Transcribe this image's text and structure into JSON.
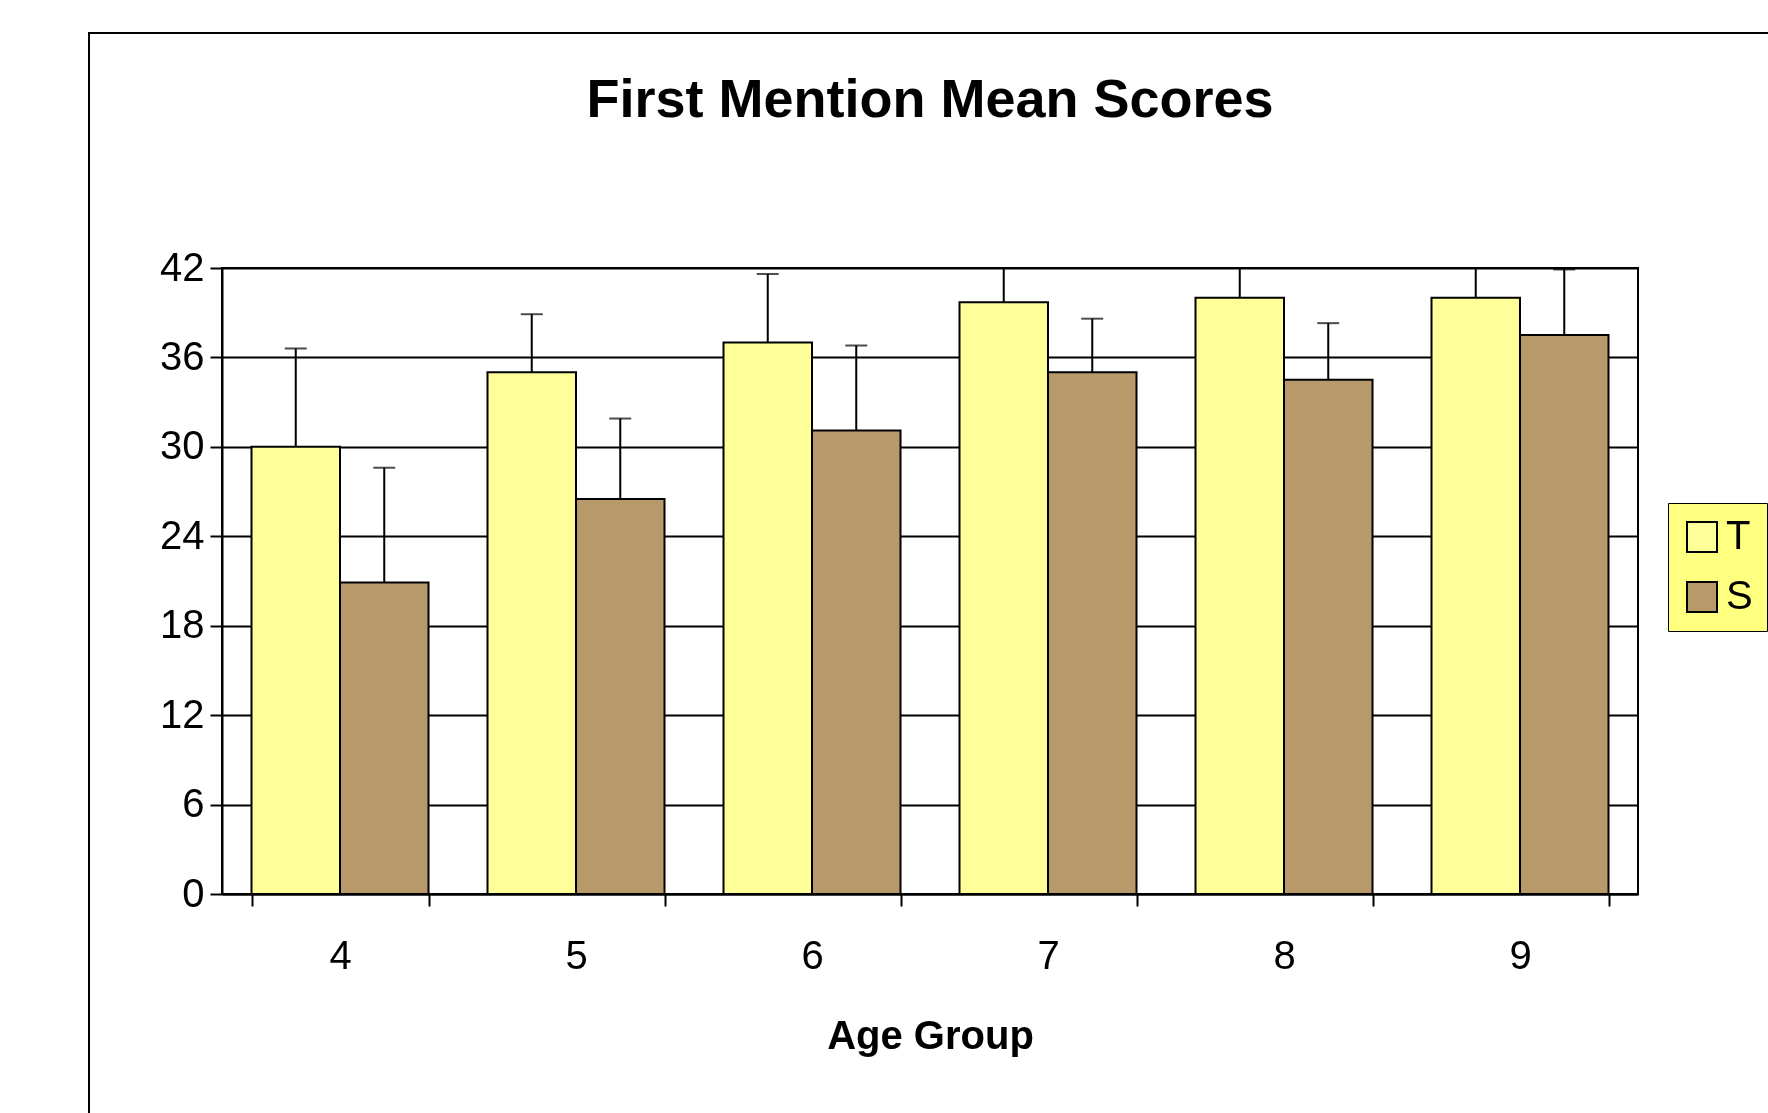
{
  "chart_data": {
    "type": "bar",
    "title": "First Mention Mean Scores",
    "xlabel": "Age Group",
    "categories": [
      "4",
      "5",
      "6",
      "7",
      "8",
      "9"
    ],
    "series": [
      {
        "name": "T",
        "color": "#ffff99",
        "values": [
          30.0,
          35.0,
          37.0,
          39.7,
          40.0,
          40.0
        ],
        "errors": [
          6.6,
          3.9,
          4.6,
          2.3,
          2.0,
          2.0
        ]
      },
      {
        "name": "S",
        "color": "#b89a6a",
        "values": [
          20.9,
          26.5,
          31.1,
          35.0,
          34.5,
          37.5
        ],
        "errors": [
          7.7,
          5.4,
          5.7,
          3.6,
          3.8,
          4.4
        ]
      }
    ],
    "ylim": [
      0,
      42
    ],
    "yticks": [
      0,
      6,
      12,
      18,
      24,
      30,
      36,
      42
    ],
    "grid": "y",
    "legend": "right"
  }
}
